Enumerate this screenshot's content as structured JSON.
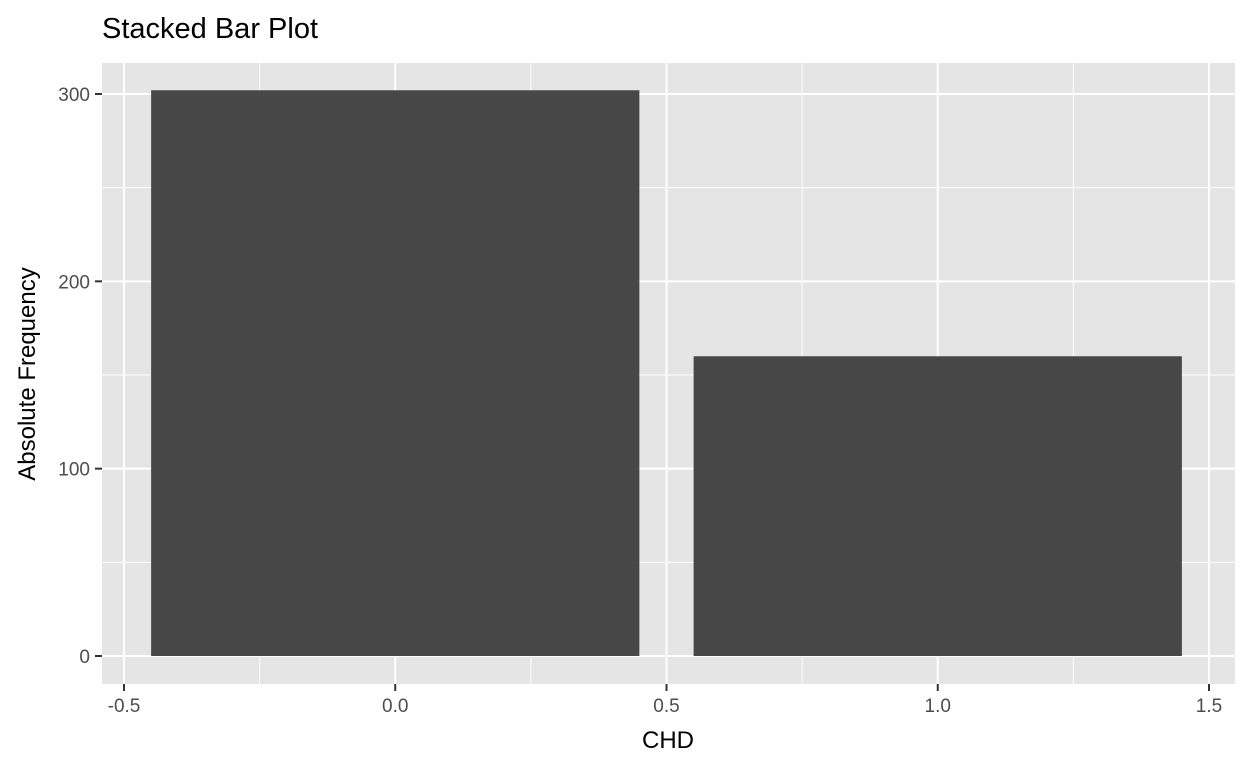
{
  "chart_data": {
    "type": "bar",
    "title": "Stacked Bar Plot",
    "xlabel": "CHD",
    "ylabel": "Absolute Frequency",
    "x": [
      0,
      1
    ],
    "values": [
      302,
      160
    ],
    "bar_width": 0.9,
    "xlim": [
      -0.5,
      1.5
    ],
    "ylim": [
      0,
      300
    ],
    "x_ticks": [
      -0.5,
      0.0,
      0.5,
      1.0,
      1.5
    ],
    "x_tick_labels": [
      "-0.5",
      "0.0",
      "0.5",
      "1.0",
      "1.5"
    ],
    "y_ticks": [
      0,
      100,
      200,
      300
    ],
    "y_tick_labels": [
      "0",
      "100",
      "200",
      "300"
    ],
    "grid": true,
    "legend": "none",
    "colors": {
      "panel_bg": "#e5e5e5",
      "grid": "#ffffff",
      "bar": "#474747",
      "text": "#000000",
      "tick_text": "#4d4d4d"
    }
  }
}
